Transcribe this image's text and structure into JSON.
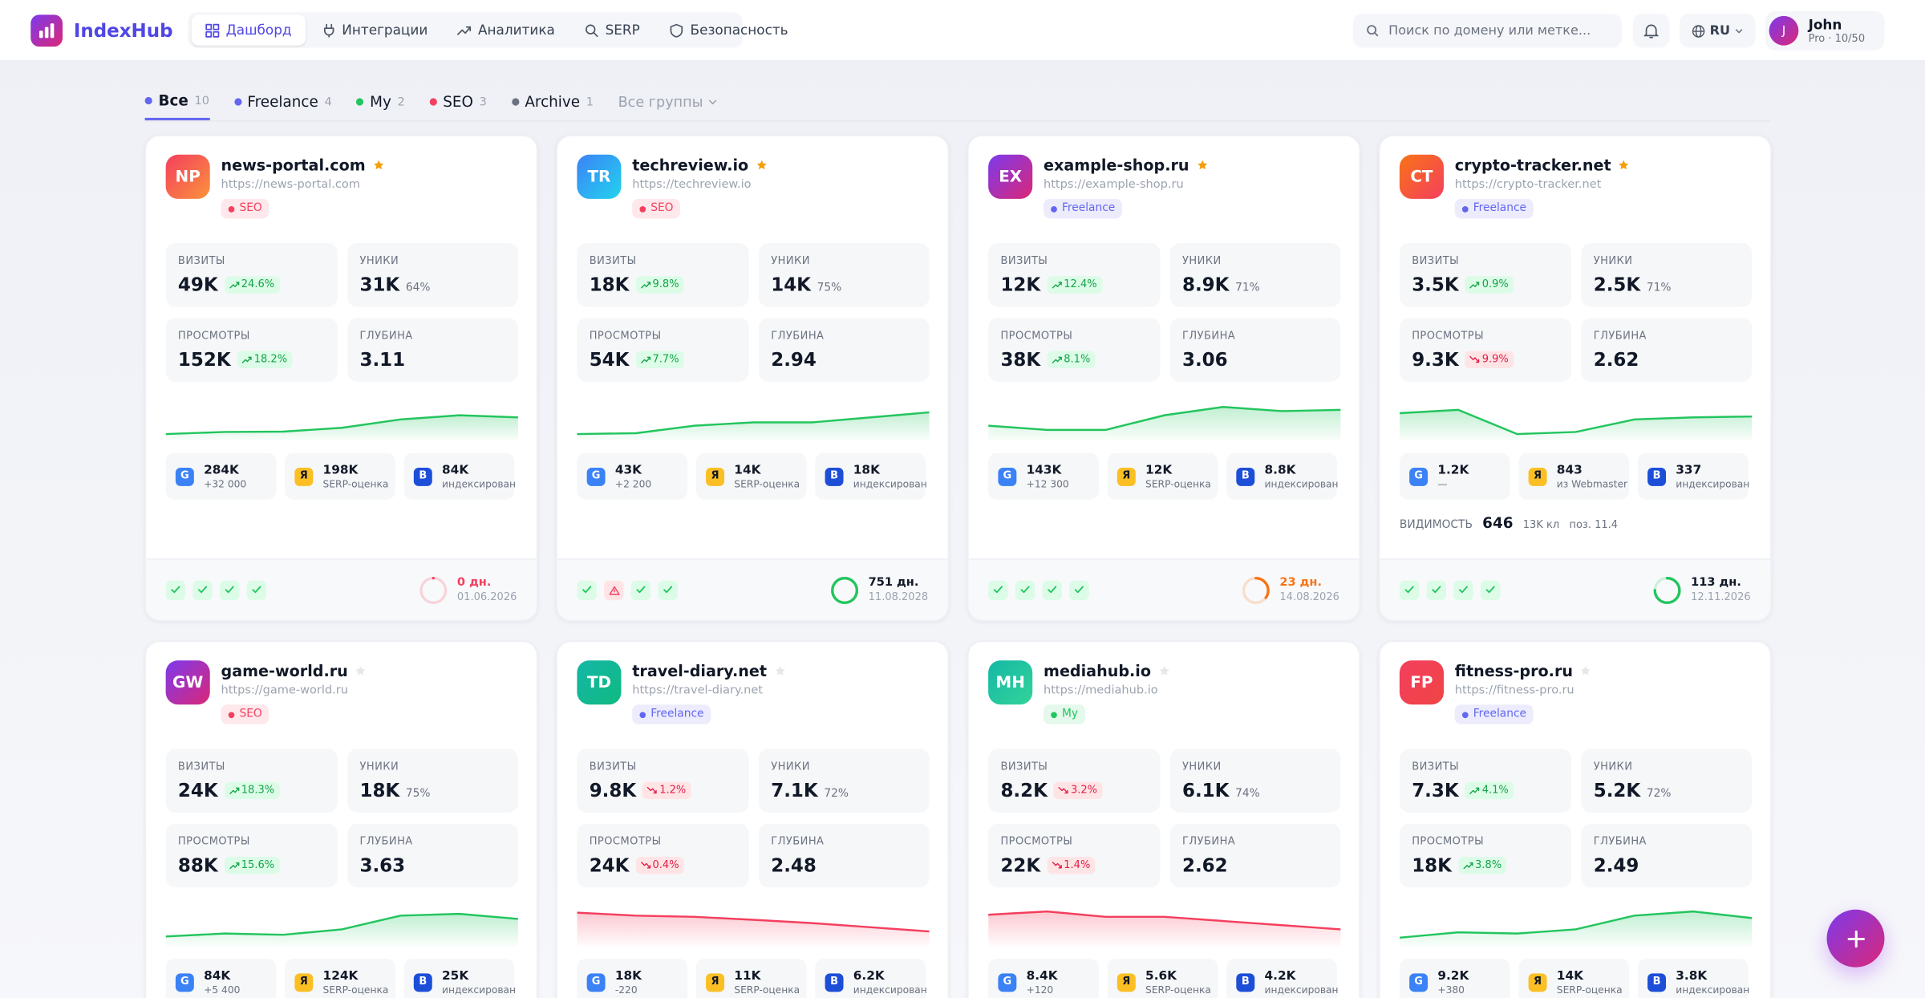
{
  "header": {
    "brand": "IndexHub",
    "nav": [
      "Дашборд",
      "Интеграции",
      "Аналитика",
      "SERP",
      "Безопасность"
    ],
    "search_placeholder": "Поиск по домену или метке...",
    "lang": "RU",
    "user": {
      "initial": "J",
      "name": "John",
      "plan": "Pro · 10/50"
    }
  },
  "tabs": [
    {
      "label": "Все",
      "count": 10,
      "color": "#6366f1"
    },
    {
      "label": "Freelance",
      "count": 4,
      "color": "#6366f1"
    },
    {
      "label": "My",
      "count": 2,
      "color": "#22c55e"
    },
    {
      "label": "SEO",
      "count": 3,
      "color": "#f43f5e"
    },
    {
      "label": "Archive",
      "count": 1,
      "color": "#6b7280"
    }
  ],
  "group_filter": "Все группы",
  "metric_labels": {
    "visits": "ВИЗИТЫ",
    "uniques": "УНИКИ",
    "views": "ПРОСМОТРЫ",
    "depth": "ГЛУБИНА"
  },
  "visibility_label": "ВИДИМОСТЬ",
  "sites": [
    {
      "initials": "NP",
      "avatar": [
        "#f43f5e",
        "#fb923c"
      ],
      "domain": "news-portal.com",
      "starred": true,
      "url": "https://news-portal.com",
      "tag": "SEO",
      "visits": "49K",
      "visits_change": {
        "text": "24.6%",
        "up": true
      },
      "uniques": "31K",
      "uniques_share": "64%",
      "views": "152K",
      "views_change": {
        "text": "18.2%",
        "up": true
      },
      "depth": "3.11",
      "trend_color": "#22c55e",
      "trend": [
        10,
        15,
        16,
        25,
        45,
        55,
        50
      ],
      "sources": [
        {
          "icon": "G",
          "value": "284K",
          "note": "+32 000"
        },
        {
          "icon": "Я",
          "value": "198K",
          "note": "SERP-оценка"
        },
        {
          "icon": "B",
          "value": "84K",
          "note": "индексирован"
        }
      ],
      "checks": [
        "ok",
        "ok",
        "ok",
        "ok"
      ],
      "days": "0 дн.",
      "date": "01.06.2026",
      "ring": {
        "color": "#f43f5e",
        "progress": 0,
        "alert": true
      }
    },
    {
      "initials": "TR",
      "avatar": [
        "#3b82f6",
        "#22d3ee"
      ],
      "domain": "techreview.io",
      "starred": true,
      "url": "https://techreview.io",
      "tag": "SEO",
      "visits": "18K",
      "visits_change": {
        "text": "9.8%",
        "up": true
      },
      "uniques": "14K",
      "uniques_share": "75%",
      "views": "54K",
      "views_change": {
        "text": "7.7%",
        "up": true
      },
      "depth": "2.94",
      "trend_color": "#22c55e",
      "trend": [
        10,
        12,
        30,
        38,
        38,
        50,
        62
      ],
      "sources": [
        {
          "icon": "G",
          "value": "43K",
          "note": "+2 200"
        },
        {
          "icon": "Я",
          "value": "14K",
          "note": "SERP-оценка"
        },
        {
          "icon": "B",
          "value": "18K",
          "note": "индексирован"
        }
      ],
      "checks": [
        "ok",
        "warn",
        "ok",
        "ok"
      ],
      "days": "751 дн.",
      "date": "11.08.2028",
      "ring": {
        "color": "#22c55e",
        "progress": 1,
        "alert": false
      }
    },
    {
      "initials": "EX",
      "avatar": [
        "#7c3aed",
        "#db2777"
      ],
      "domain": "example-shop.ru",
      "starred": true,
      "url": "https://example-shop.ru",
      "tag": "Freelance",
      "visits": "12K",
      "visits_change": {
        "text": "12.4%",
        "up": true
      },
      "uniques": "8.9K",
      "uniques_share": "71%",
      "views": "38K",
      "views_change": {
        "text": "8.1%",
        "up": true
      },
      "depth": "3.06",
      "trend_color": "#22c55e",
      "trend": [
        30,
        20,
        20,
        55,
        75,
        65,
        68
      ],
      "sources": [
        {
          "icon": "G",
          "value": "143K",
          "note": "+12 300"
        },
        {
          "icon": "Я",
          "value": "12K",
          "note": "SERP-оценка"
        },
        {
          "icon": "B",
          "value": "8.8K",
          "note": "индексирован"
        }
      ],
      "checks": [
        "ok",
        "ok",
        "ok",
        "ok"
      ],
      "days": "23 дн.",
      "date": "14.08.2026",
      "ring": {
        "color": "#f97316",
        "progress": 0.35,
        "alert": true
      }
    },
    {
      "initials": "CT",
      "avatar": [
        "#f97316",
        "#f43f5e"
      ],
      "domain": "crypto-tracker.net",
      "starred": true,
      "url": "https://crypto-tracker.net",
      "tag": "Freelance",
      "visits": "3.5K",
      "visits_change": {
        "text": "0.9%",
        "up": true
      },
      "uniques": "2.5K",
      "uniques_share": "71%",
      "views": "9.3K",
      "views_change": {
        "text": "9.9%",
        "up": false
      },
      "depth": "2.62",
      "trend_color": "#22c55e",
      "trend": [
        60,
        68,
        10,
        15,
        45,
        50,
        52
      ],
      "sources": [
        {
          "icon": "G",
          "value": "1.2K",
          "note": "—"
        },
        {
          "icon": "Я",
          "value": "843",
          "note": "из Webmaster"
        },
        {
          "icon": "B",
          "value": "337",
          "note": "индексирован"
        }
      ],
      "visibility": {
        "value": "646",
        "clicks": "13K кл",
        "position": "поз. 11.4"
      },
      "checks": [
        "ok",
        "ok",
        "ok",
        "ok"
      ],
      "days": "113 дн.",
      "date": "12.11.2026",
      "ring": {
        "color": "#22c55e",
        "progress": 0.75,
        "alert": false
      }
    },
    {
      "initials": "GW",
      "avatar": [
        "#7c3aed",
        "#db2777"
      ],
      "domain": "game-world.ru",
      "starred": false,
      "url": "https://game-world.ru",
      "tag": "SEO",
      "visits": "24K",
      "visits_change": {
        "text": "18.3%",
        "up": true
      },
      "uniques": "18K",
      "uniques_share": "75%",
      "views": "88K",
      "views_change": {
        "text": "15.6%",
        "up": true
      },
      "depth": "3.63",
      "trend_color": "#22c55e",
      "trend": [
        18,
        25,
        22,
        35,
        68,
        72,
        60
      ],
      "sources": [
        {
          "icon": "G",
          "value": "84K",
          "note": "+5 400"
        },
        {
          "icon": "Я",
          "value": "124K",
          "note": "SERP-оценка"
        },
        {
          "icon": "B",
          "value": "25K",
          "note": "индексирован"
        }
      ]
    },
    {
      "initials": "TD",
      "avatar": [
        "#14b8a6",
        "#10b981"
      ],
      "domain": "travel-diary.net",
      "starred": false,
      "url": "https://travel-diary.net",
      "tag": "Freelance",
      "visits": "9.8K",
      "visits_change": {
        "text": "1.2%",
        "up": false
      },
      "uniques": "7.1K",
      "uniques_share": "72%",
      "views": "24K",
      "views_change": {
        "text": "0.4%",
        "up": false
      },
      "depth": "2.48",
      "trend_color": "#f43f5e",
      "trend": [
        75,
        68,
        65,
        58,
        50,
        40,
        30
      ],
      "sources": [
        {
          "icon": "G",
          "value": "18K",
          "note": "-220"
        },
        {
          "icon": "Я",
          "value": "11K",
          "note": "SERP-оценка"
        },
        {
          "icon": "B",
          "value": "6.2K",
          "note": "индексирован"
        }
      ]
    },
    {
      "initials": "MH",
      "avatar": [
        "#14b8a6",
        "#34d399"
      ],
      "domain": "mediahub.io",
      "starred": false,
      "url": "https://mediahub.io",
      "tag": "My",
      "visits": "8.2K",
      "visits_change": {
        "text": "3.2%",
        "up": false
      },
      "uniques": "6.1K",
      "uniques_share": "74%",
      "views": "22K",
      "views_change": {
        "text": "1.4%",
        "up": false
      },
      "depth": "2.62",
      "trend_color": "#f43f5e",
      "trend": [
        70,
        78,
        65,
        65,
        55,
        45,
        35
      ],
      "sources": [
        {
          "icon": "G",
          "value": "8.4K",
          "note": "+120"
        },
        {
          "icon": "Я",
          "value": "5.6K",
          "note": "SERP-оценка"
        },
        {
          "icon": "B",
          "value": "4.2K",
          "note": "индексирован"
        }
      ]
    },
    {
      "initials": "FP",
      "avatar": [
        "#f43f5e",
        "#ef4444"
      ],
      "domain": "fitness-pro.ru",
      "starred": false,
      "url": "https://fitness-pro.ru",
      "tag": "Freelance",
      "visits": "7.3K",
      "visits_change": {
        "text": "4.1%",
        "up": true
      },
      "uniques": "5.2K",
      "uniques_share": "72%",
      "views": "18K",
      "views_change": {
        "text": "3.8%",
        "up": true
      },
      "depth": "2.49",
      "trend_color": "#22c55e",
      "trend": [
        15,
        28,
        25,
        35,
        68,
        78,
        62
      ],
      "sources": [
        {
          "icon": "G",
          "value": "9.2K",
          "note": "+380"
        },
        {
          "icon": "Я",
          "value": "14K",
          "note": "SERP-оценка"
        },
        {
          "icon": "B",
          "value": "3.8K",
          "note": "индексирован"
        }
      ]
    }
  ]
}
